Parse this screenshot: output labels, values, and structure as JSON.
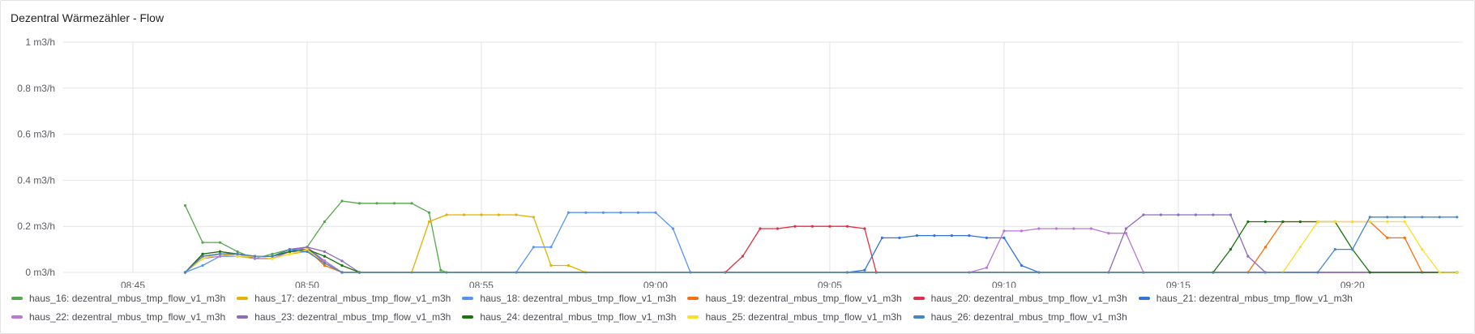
{
  "panel": {
    "title": "Dezentral Wärmezähler - Flow"
  },
  "colors": {
    "grid": "#e4e4e7",
    "axis_text": "#5b5d63"
  },
  "chart_data": {
    "type": "line",
    "title": "Dezentral Wärmezähler - Flow",
    "xlabel": "",
    "ylabel": "",
    "y_unit": "m3/h",
    "ylim": [
      0,
      1
    ],
    "xlim": [
      "08:43:00",
      "09:23:10"
    ],
    "y_ticks": [
      {
        "value": 0,
        "label": "0 m3/h"
      },
      {
        "value": 0.2,
        "label": "0.2 m3/h"
      },
      {
        "value": 0.4,
        "label": "0.4 m3/h"
      },
      {
        "value": 0.6,
        "label": "0.6 m3/h"
      },
      {
        "value": 0.8,
        "label": "0.8 m3/h"
      },
      {
        "value": 1,
        "label": "1 m3/h"
      }
    ],
    "x_ticks": [
      "08:45",
      "08:50",
      "08:55",
      "09:00",
      "09:05",
      "09:10",
      "09:15",
      "09:20"
    ],
    "grid": true,
    "legend_position": "bottom",
    "series": [
      {
        "name": "haus_16: dezentral_mbus_tmp_flow_v1_m3h",
        "color": "#56a64b",
        "points": [
          [
            "08:46:30",
            0.29
          ],
          [
            "08:47:00",
            0.13
          ],
          [
            "08:47:30",
            0.13
          ],
          [
            "08:48:00",
            0.09
          ],
          [
            "08:48:30",
            0.06
          ],
          [
            "08:49:00",
            0.08
          ],
          [
            "08:49:30",
            0.1
          ],
          [
            "08:50:00",
            0.11
          ],
          [
            "08:50:30",
            0.22
          ],
          [
            "08:51:00",
            0.31
          ],
          [
            "08:51:30",
            0.3
          ],
          [
            "08:52:00",
            0.3
          ],
          [
            "08:52:30",
            0.3
          ],
          [
            "08:53:00",
            0.3
          ],
          [
            "08:53:30",
            0.26
          ],
          [
            "08:53:50",
            0.01
          ],
          [
            "08:54:00",
            0
          ],
          [
            "09:23:00",
            0
          ]
        ]
      },
      {
        "name": "haus_17: dezentral_mbus_tmp_flow_v1_m3h",
        "color": "#e0b400",
        "points": [
          [
            "08:46:30",
            0
          ],
          [
            "08:47:00",
            0.07
          ],
          [
            "08:47:30",
            0.08
          ],
          [
            "08:48:00",
            0.07
          ],
          [
            "08:48:30",
            0.06
          ],
          [
            "08:49:00",
            0.06
          ],
          [
            "08:49:30",
            0.08
          ],
          [
            "08:50:00",
            0.09
          ],
          [
            "08:50:30",
            0.05
          ],
          [
            "08:51:00",
            0
          ],
          [
            "08:53:00",
            0
          ],
          [
            "08:53:30",
            0.22
          ],
          [
            "08:54:00",
            0.25
          ],
          [
            "08:54:30",
            0.25
          ],
          [
            "08:55:00",
            0.25
          ],
          [
            "08:55:30",
            0.25
          ],
          [
            "08:56:00",
            0.25
          ],
          [
            "08:56:30",
            0.24
          ],
          [
            "08:57:00",
            0.03
          ],
          [
            "08:57:30",
            0.03
          ],
          [
            "08:58:00",
            0
          ],
          [
            "09:23:00",
            0
          ]
        ]
      },
      {
        "name": "haus_18: dezentral_mbus_tmp_flow_v1_m3h",
        "color": "#5794f2",
        "points": [
          [
            "08:46:30",
            0
          ],
          [
            "08:47:00",
            0.03
          ],
          [
            "08:47:30",
            0.07
          ],
          [
            "08:48:00",
            0.07
          ],
          [
            "08:48:30",
            0.07
          ],
          [
            "08:49:00",
            0.07
          ],
          [
            "08:49:30",
            0.09
          ],
          [
            "08:50:00",
            0.09
          ],
          [
            "08:50:30",
            0.04
          ],
          [
            "08:51:00",
            0
          ],
          [
            "08:56:00",
            0
          ],
          [
            "08:56:30",
            0.11
          ],
          [
            "08:57:00",
            0.11
          ],
          [
            "08:57:30",
            0.26
          ],
          [
            "08:58:00",
            0.26
          ],
          [
            "08:58:30",
            0.26
          ],
          [
            "08:59:00",
            0.26
          ],
          [
            "08:59:30",
            0.26
          ],
          [
            "09:00:00",
            0.26
          ],
          [
            "09:00:30",
            0.19
          ],
          [
            "09:01:00",
            0
          ],
          [
            "09:23:00",
            0
          ]
        ]
      },
      {
        "name": "haus_19: dezentral_mbus_tmp_flow_v1_m3h",
        "color": "#f2700f",
        "points": [
          [
            "08:46:30",
            0
          ],
          [
            "08:47:00",
            0.08
          ],
          [
            "08:47:30",
            0.09
          ],
          [
            "08:48:00",
            0.08
          ],
          [
            "08:48:30",
            0.07
          ],
          [
            "08:49:00",
            0.07
          ],
          [
            "08:49:30",
            0.1
          ],
          [
            "08:50:00",
            0.1
          ],
          [
            "08:50:30",
            0.03
          ],
          [
            "08:51:00",
            0
          ],
          [
            "09:17:00",
            0
          ],
          [
            "09:17:30",
            0.11
          ],
          [
            "09:18:00",
            0.22
          ],
          [
            "09:18:30",
            0.22
          ],
          [
            "09:19:00",
            0.22
          ],
          [
            "09:19:30",
            0.22
          ],
          [
            "09:20:00",
            0.22
          ],
          [
            "09:20:30",
            0.22
          ],
          [
            "09:21:00",
            0.15
          ],
          [
            "09:21:30",
            0.15
          ],
          [
            "09:22:00",
            0
          ],
          [
            "09:23:00",
            0
          ]
        ]
      },
      {
        "name": "haus_20: dezentral_mbus_tmp_flow_v1_m3h",
        "color": "#e02f44",
        "points": [
          [
            "08:46:30",
            0
          ],
          [
            "08:47:00",
            0.06
          ],
          [
            "08:47:30",
            0.08
          ],
          [
            "08:48:00",
            0.08
          ],
          [
            "08:48:30",
            0.07
          ],
          [
            "08:49:00",
            0.07
          ],
          [
            "08:49:30",
            0.09
          ],
          [
            "08:50:00",
            0.11
          ],
          [
            "08:50:30",
            0.04
          ],
          [
            "08:51:00",
            0
          ],
          [
            "09:02:00",
            0
          ],
          [
            "09:02:30",
            0.07
          ],
          [
            "09:03:00",
            0.19
          ],
          [
            "09:03:30",
            0.19
          ],
          [
            "09:04:00",
            0.2
          ],
          [
            "09:04:30",
            0.2
          ],
          [
            "09:05:00",
            0.2
          ],
          [
            "09:05:30",
            0.2
          ],
          [
            "09:06:00",
            0.19
          ],
          [
            "09:06:20",
            0
          ],
          [
            "09:23:00",
            0
          ]
        ]
      },
      {
        "name": "haus_21: dezentral_mbus_tmp_flow_v1_m3h",
        "color": "#3274d9",
        "points": [
          [
            "08:46:30",
            0
          ],
          [
            "08:47:00",
            0.07
          ],
          [
            "08:47:30",
            0.08
          ],
          [
            "08:48:00",
            0.08
          ],
          [
            "08:48:30",
            0.07
          ],
          [
            "08:49:00",
            0.07
          ],
          [
            "08:49:30",
            0.09
          ],
          [
            "08:50:00",
            0.1
          ],
          [
            "08:50:30",
            0.05
          ],
          [
            "08:51:00",
            0
          ],
          [
            "09:05:30",
            0
          ],
          [
            "09:06:00",
            0.01
          ],
          [
            "09:06:30",
            0.15
          ],
          [
            "09:07:00",
            0.15
          ],
          [
            "09:07:30",
            0.16
          ],
          [
            "09:08:00",
            0.16
          ],
          [
            "09:08:30",
            0.16
          ],
          [
            "09:09:00",
            0.16
          ],
          [
            "09:09:30",
            0.15
          ],
          [
            "09:10:00",
            0.15
          ],
          [
            "09:10:30",
            0.03
          ],
          [
            "09:11:00",
            0
          ],
          [
            "09:23:00",
            0
          ]
        ]
      },
      {
        "name": "haus_22: dezentral_mbus_tmp_flow_v1_m3h",
        "color": "#b877d9",
        "points": [
          [
            "08:46:30",
            0
          ],
          [
            "08:47:00",
            0.06
          ],
          [
            "08:47:30",
            0.07
          ],
          [
            "08:48:00",
            0.08
          ],
          [
            "08:48:30",
            0.06
          ],
          [
            "08:49:00",
            0.06
          ],
          [
            "08:49:30",
            0.09
          ],
          [
            "08:50:00",
            0.11
          ],
          [
            "08:50:30",
            0.05
          ],
          [
            "08:51:00",
            0
          ],
          [
            "09:09:00",
            0
          ],
          [
            "09:09:30",
            0.02
          ],
          [
            "09:10:00",
            0.18
          ],
          [
            "09:10:30",
            0.18
          ],
          [
            "09:11:00",
            0.19
          ],
          [
            "09:11:30",
            0.19
          ],
          [
            "09:12:00",
            0.19
          ],
          [
            "09:12:30",
            0.19
          ],
          [
            "09:13:00",
            0.17
          ],
          [
            "09:13:30",
            0.17
          ],
          [
            "09:14:00",
            0
          ],
          [
            "09:23:00",
            0
          ]
        ]
      },
      {
        "name": "haus_23: dezentral_mbus_tmp_flow_v1_m3h",
        "color": "#8f6bbd",
        "points": [
          [
            "08:46:30",
            0
          ],
          [
            "08:47:00",
            0.07
          ],
          [
            "08:47:30",
            0.08
          ],
          [
            "08:48:00",
            0.08
          ],
          [
            "08:48:30",
            0.07
          ],
          [
            "08:49:00",
            0.07
          ],
          [
            "08:49:30",
            0.1
          ],
          [
            "08:50:00",
            0.11
          ],
          [
            "08:50:30",
            0.09
          ],
          [
            "08:51:00",
            0.05
          ],
          [
            "08:51:30",
            0
          ],
          [
            "09:13:00",
            0
          ],
          [
            "09:13:30",
            0.19
          ],
          [
            "09:14:00",
            0.25
          ],
          [
            "09:14:30",
            0.25
          ],
          [
            "09:15:00",
            0.25
          ],
          [
            "09:15:30",
            0.25
          ],
          [
            "09:16:00",
            0.25
          ],
          [
            "09:16:30",
            0.25
          ],
          [
            "09:17:00",
            0.07
          ],
          [
            "09:17:30",
            0
          ],
          [
            "09:23:00",
            0
          ]
        ]
      },
      {
        "name": "haus_24: dezentral_mbus_tmp_flow_v1_m3h",
        "color": "#19730e",
        "points": [
          [
            "08:46:30",
            0
          ],
          [
            "08:47:00",
            0.08
          ],
          [
            "08:47:30",
            0.09
          ],
          [
            "08:48:00",
            0.08
          ],
          [
            "08:48:30",
            0.07
          ],
          [
            "08:49:00",
            0.07
          ],
          [
            "08:49:30",
            0.09
          ],
          [
            "08:50:00",
            0.1
          ],
          [
            "08:50:30",
            0.07
          ],
          [
            "08:51:00",
            0.03
          ],
          [
            "08:51:30",
            0
          ],
          [
            "09:16:00",
            0
          ],
          [
            "09:16:30",
            0.1
          ],
          [
            "09:17:00",
            0.22
          ],
          [
            "09:17:30",
            0.22
          ],
          [
            "09:18:00",
            0.22
          ],
          [
            "09:18:30",
            0.22
          ],
          [
            "09:19:00",
            0.22
          ],
          [
            "09:19:30",
            0.22
          ],
          [
            "09:20:00",
            0.1
          ],
          [
            "09:20:30",
            0
          ],
          [
            "09:23:00",
            0
          ]
        ]
      },
      {
        "name": "haus_25: dezentral_mbus_tmp_flow_v1_m3h",
        "color": "#fade2a",
        "points": [
          [
            "08:46:30",
            0
          ],
          [
            "08:47:00",
            0.06
          ],
          [
            "08:47:30",
            0.08
          ],
          [
            "08:48:00",
            0.07
          ],
          [
            "08:48:30",
            0.07
          ],
          [
            "08:49:00",
            0.06
          ],
          [
            "08:49:30",
            0.08
          ],
          [
            "08:50:00",
            0.1
          ],
          [
            "08:50:30",
            0.04
          ],
          [
            "08:51:00",
            0
          ],
          [
            "09:18:00",
            0
          ],
          [
            "09:18:30",
            0.11
          ],
          [
            "09:19:00",
            0.22
          ],
          [
            "09:19:30",
            0.22
          ],
          [
            "09:20:00",
            0.22
          ],
          [
            "09:20:30",
            0.22
          ],
          [
            "09:21:00",
            0.22
          ],
          [
            "09:21:30",
            0.22
          ],
          [
            "09:22:00",
            0.1
          ],
          [
            "09:22:30",
            0
          ],
          [
            "09:23:00",
            0
          ]
        ]
      },
      {
        "name": "haus_26: dezentral_mbus_tmp_flow_v1_m3h",
        "color": "#4686c8",
        "points": [
          [
            "08:46:30",
            0
          ],
          [
            "08:47:00",
            0.07
          ],
          [
            "08:47:30",
            0.08
          ],
          [
            "08:48:00",
            0.08
          ],
          [
            "08:48:30",
            0.07
          ],
          [
            "08:49:00",
            0.07
          ],
          [
            "08:49:30",
            0.1
          ],
          [
            "08:50:00",
            0.09
          ],
          [
            "08:50:30",
            0.04
          ],
          [
            "08:51:00",
            0
          ],
          [
            "09:19:00",
            0
          ],
          [
            "09:19:30",
            0.1
          ],
          [
            "09:20:00",
            0.1
          ],
          [
            "09:20:30",
            0.24
          ],
          [
            "09:21:00",
            0.24
          ],
          [
            "09:21:30",
            0.24
          ],
          [
            "09:22:00",
            0.24
          ],
          [
            "09:22:30",
            0.24
          ],
          [
            "09:23:00",
            0.24
          ]
        ]
      }
    ]
  }
}
